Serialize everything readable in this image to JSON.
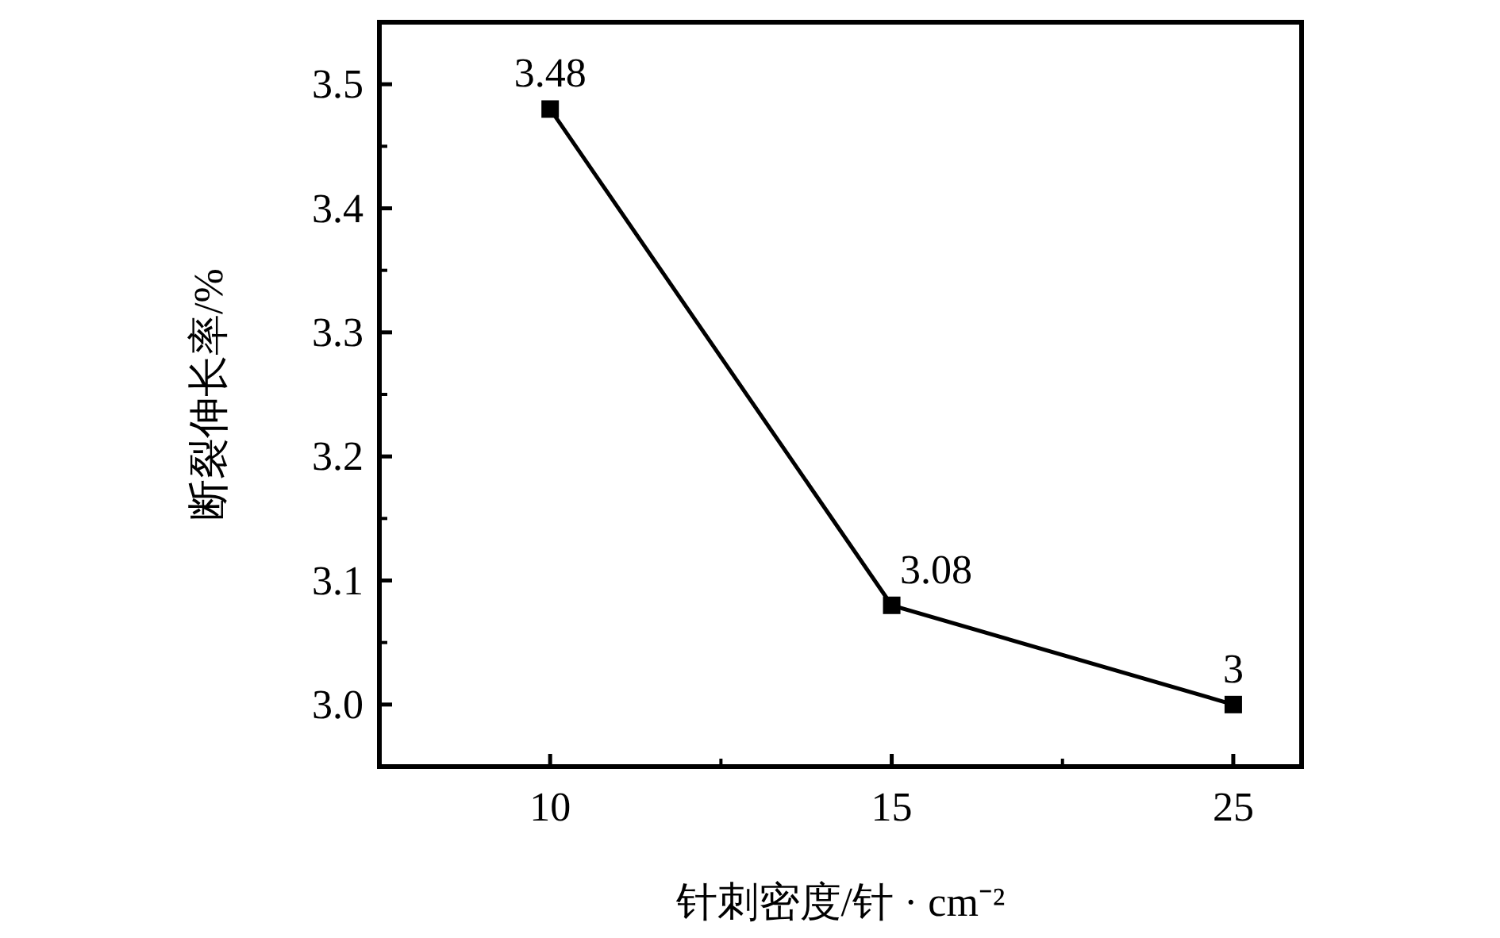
{
  "chart_data": {
    "type": "line",
    "xlabel": "针刺密度/针 · cm⁻²",
    "ylabel": "断裂伸长率/%",
    "categories": [
      "10",
      "15",
      "25"
    ],
    "series": [
      {
        "color": "#000000",
        "values": [
          3.48,
          3.08,
          3
        ]
      }
    ],
    "ylim": [
      2.95,
      3.55
    ],
    "yticks": [
      {
        "value": 3,
        "label": "3.0"
      },
      3.1,
      3.2,
      3.3,
      3.4,
      3.5
    ],
    "marker": "square",
    "line_style": "solid",
    "data_labels": true,
    "grid": false
  }
}
